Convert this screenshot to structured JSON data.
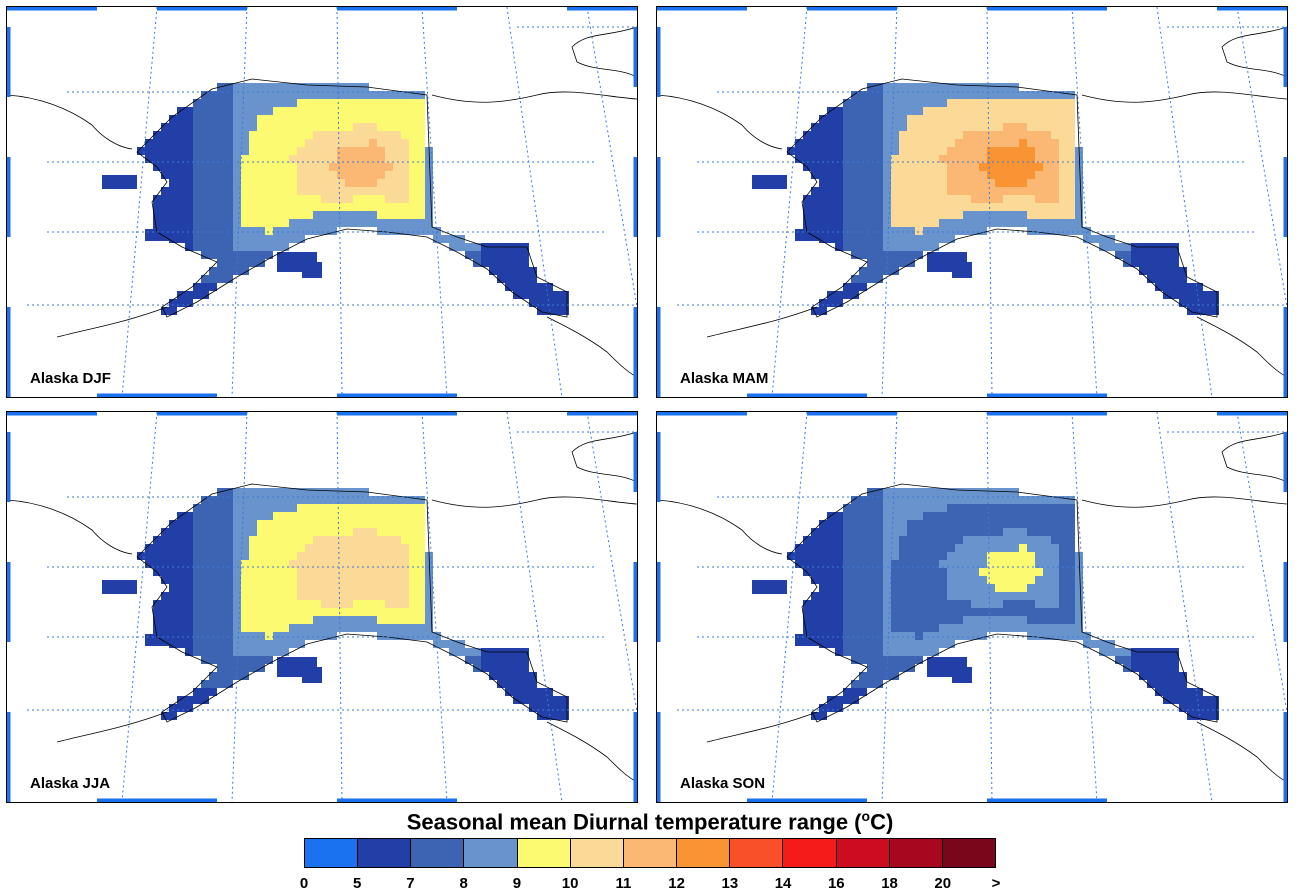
{
  "title": "Seasonal mean Diurnal temperature range (",
  "title_unit": "o",
  "title_tail": "C)",
  "panels": [
    {
      "label": "Alaska DJF",
      "season": "DJF",
      "interior_level": 4,
      "peak_level": 6
    },
    {
      "label": "Alaska MAM",
      "season": "MAM",
      "interior_level": 5,
      "peak_level": 7
    },
    {
      "label": "Alaska JJA",
      "season": "JJA",
      "interior_level": 4,
      "peak_level": 5
    },
    {
      "label": "Alaska SON",
      "season": "SON",
      "interior_level": 2,
      "peak_level": 4
    }
  ],
  "legend": {
    "ticks": [
      "0",
      "5",
      "7",
      "8",
      "9",
      "10",
      "11",
      "12",
      "13",
      "14",
      "16",
      "18",
      "20",
      ">"
    ],
    "colors": [
      "#1a72f0",
      "#223fa8",
      "#3d63b3",
      "#6993cc",
      "#fbfa70",
      "#fbd997",
      "#fab874",
      "#f99435",
      "#f9502a",
      "#f51b1b",
      "#cb0d1f",
      "#a8081f",
      "#7a061c"
    ]
  },
  "map_colors": {
    "grid": "#3a78d9",
    "frame_tick": "#1a72f0",
    "coast": "#000000"
  }
}
